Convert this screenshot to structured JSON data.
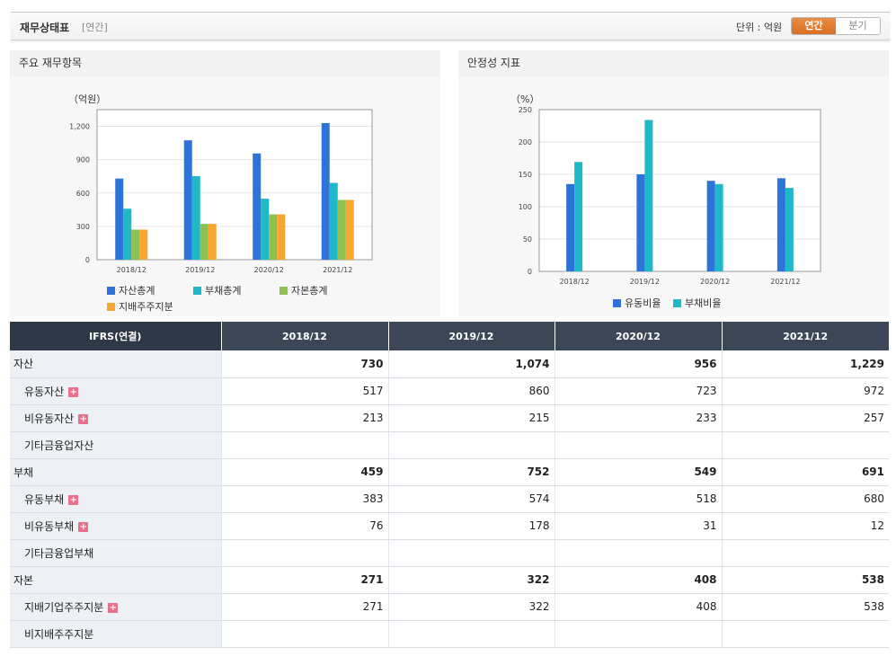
{
  "header": {
    "title": "재무상태표",
    "subtitle": "[연간]",
    "unit": "단위 : 억원",
    "period_buttons": [
      "연간",
      "분기"
    ],
    "active_period": "연간"
  },
  "panels": {
    "left_title": "주요 재무항목",
    "right_title": "안정성 지표"
  },
  "chart_data": [
    {
      "type": "bar",
      "unit_label": "（억원）",
      "categories": [
        "2018/12",
        "2019/12",
        "2020/12",
        "2021/12"
      ],
      "yticks": [
        "0",
        "300",
        "600",
        "900",
        "1,200"
      ],
      "ylim": [
        0,
        1350
      ],
      "grid": true,
      "legend_position": "bottom",
      "series": [
        {
          "name": "자산총계",
          "values": [
            730,
            1074,
            956,
            1229
          ],
          "color": "#2d73d8"
        },
        {
          "name": "부채총계",
          "values": [
            459,
            752,
            549,
            691
          ],
          "color": "#1fb8c9"
        },
        {
          "name": "자본총계",
          "values": [
            271,
            322,
            408,
            538
          ],
          "color": "#8ec150"
        },
        {
          "name": "지배주주지분",
          "values": [
            271,
            322,
            408,
            538
          ],
          "color": "#f7a631"
        }
      ]
    },
    {
      "type": "bar",
      "unit_label": "（%）",
      "categories": [
        "2018/12",
        "2019/12",
        "2020/12",
        "2021/12"
      ],
      "yticks": [
        "0",
        "50",
        "100",
        "150",
        "200",
        "250"
      ],
      "ylim": [
        0,
        250
      ],
      "grid": true,
      "legend_position": "bottom",
      "series": [
        {
          "name": "유동비율",
          "values": [
            135,
            150,
            140,
            144
          ],
          "color": "#2d73d8"
        },
        {
          "name": "부채비율",
          "values": [
            169,
            234,
            135,
            129
          ],
          "color": "#1fb8c9"
        }
      ]
    }
  ],
  "table": {
    "header": [
      "IFRS(연결)",
      "2018/12",
      "2019/12",
      "2020/12",
      "2021/12"
    ],
    "rows": [
      {
        "label": "자산",
        "values": [
          "730",
          "1,074",
          "956",
          "1,229"
        ],
        "level": 0,
        "expand": false
      },
      {
        "label": "유동자산",
        "values": [
          "517",
          "860",
          "723",
          "972"
        ],
        "level": 1,
        "expand": true
      },
      {
        "label": "비유동자산",
        "values": [
          "213",
          "215",
          "233",
          "257"
        ],
        "level": 1,
        "expand": true
      },
      {
        "label": "기타금융업자산",
        "values": [
          "",
          "",
          "",
          ""
        ],
        "level": 1,
        "expand": false
      },
      {
        "label": "부채",
        "values": [
          "459",
          "752",
          "549",
          "691"
        ],
        "level": 0,
        "expand": false
      },
      {
        "label": "유동부채",
        "values": [
          "383",
          "574",
          "518",
          "680"
        ],
        "level": 1,
        "expand": true
      },
      {
        "label": "비유동부채",
        "values": [
          "76",
          "178",
          "31",
          "12"
        ],
        "level": 1,
        "expand": true
      },
      {
        "label": "기타금융업부채",
        "values": [
          "",
          "",
          "",
          ""
        ],
        "level": 1,
        "expand": false
      },
      {
        "label": "자본",
        "values": [
          "271",
          "322",
          "408",
          "538"
        ],
        "level": 0,
        "expand": false
      },
      {
        "label": "지배기업주주지분",
        "values": [
          "271",
          "322",
          "408",
          "538"
        ],
        "level": 1,
        "expand": true
      },
      {
        "label": "비지배주주지분",
        "values": [
          "",
          "",
          "",
          ""
        ],
        "level": 1,
        "expand": false
      }
    ]
  }
}
